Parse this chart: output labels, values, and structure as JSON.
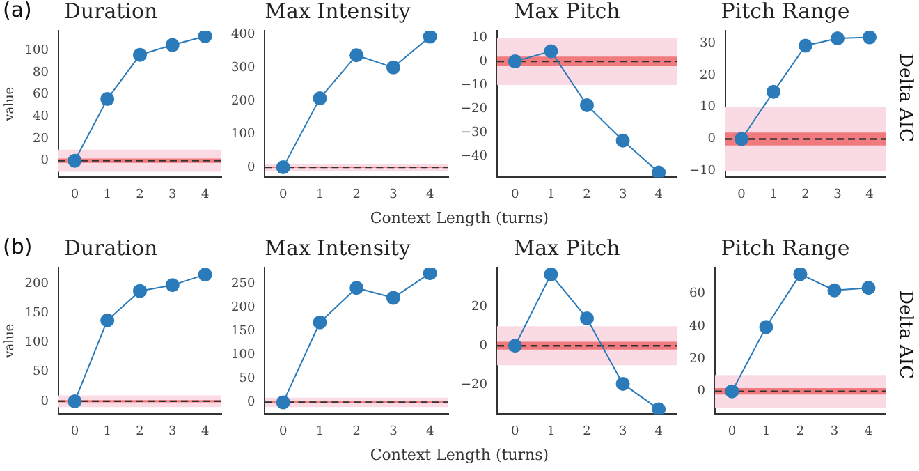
{
  "chart_data": [
    {
      "type": "line",
      "title": "Duration",
      "ylabel": "value",
      "annotations": [
        "(a)"
      ],
      "x": [
        0,
        1,
        2,
        3,
        4
      ],
      "xlim": [
        -0.5,
        4.5
      ],
      "xticks": [
        0,
        1,
        2,
        3,
        4
      ],
      "ylim": [
        -15,
        118
      ],
      "yticks": [
        0,
        20,
        40,
        60,
        80,
        100
      ],
      "color": "#2b7bba",
      "values": [
        0,
        56,
        96,
        105,
        113
      ],
      "marker": "circle",
      "grid": false,
      "legend": false,
      "bands": [
        {
          "axis": "y",
          "from": -10,
          "to": 10,
          "color": "#fbdbe3"
        },
        {
          "axis": "y",
          "from": -2,
          "to": 2,
          "color": "#f07a7e"
        }
      ],
      "ref_lines": [
        {
          "axis": "y",
          "value": 0,
          "color": "#333333",
          "line_style": "dashed"
        }
      ]
    },
    {
      "type": "line",
      "title": "Max Intensity",
      "xlabel": "Context Length (turns)",
      "x": [
        0,
        1,
        2,
        3,
        4
      ],
      "xlim": [
        -0.5,
        4.5
      ],
      "xticks": [
        0,
        1,
        2,
        3,
        4
      ],
      "ylim": [
        -30,
        412
      ],
      "yticks": [
        0,
        100,
        200,
        300,
        400
      ],
      "color": "#2b7bba",
      "values": [
        0,
        208,
        338,
        301,
        394
      ],
      "marker": "circle",
      "grid": false,
      "legend": false,
      "bands": [
        {
          "axis": "y",
          "from": -10,
          "to": 10,
          "color": "#fbdbe3"
        },
        {
          "axis": "y",
          "from": -2,
          "to": 2,
          "color": "#f07a7e"
        }
      ],
      "ref_lines": [
        {
          "axis": "y",
          "value": 0,
          "color": "#333333",
          "line_style": "dashed"
        }
      ]
    },
    {
      "type": "line",
      "title": "Max Pitch",
      "x": [
        0,
        1,
        2,
        3,
        4
      ],
      "xlim": [
        -0.5,
        4.5
      ],
      "xticks": [
        0,
        1,
        2,
        3,
        4
      ],
      "ylim": [
        -49,
        13
      ],
      "yticks": [
        {
          "value": -40,
          "label": "−40"
        },
        {
          "value": -30,
          "label": "−30"
        },
        {
          "value": -20,
          "label": "−20"
        },
        {
          "value": -10,
          "label": "−10"
        },
        0,
        10
      ],
      "color": "#2b7bba",
      "values": [
        0,
        4.3,
        -18.5,
        -33.5,
        -47
      ],
      "marker": "circle",
      "grid": false,
      "legend": false,
      "bands": [
        {
          "axis": "y",
          "from": -10,
          "to": 10,
          "color": "#fbdbe3"
        },
        {
          "axis": "y",
          "from": -2,
          "to": 2,
          "color": "#f07a7e"
        }
      ],
      "ref_lines": [
        {
          "axis": "y",
          "value": 0,
          "color": "#333333",
          "line_style": "dashed"
        }
      ]
    },
    {
      "type": "line",
      "title": "Pitch Range",
      "annotations": [
        "Delta AIC"
      ],
      "x": [
        0,
        1,
        2,
        3,
        4
      ],
      "xlim": [
        -0.5,
        4.5
      ],
      "xticks": [
        0,
        1,
        2,
        3,
        4
      ],
      "ylim": [
        -12,
        34
      ],
      "yticks": [
        {
          "value": -10,
          "label": "−10"
        },
        0,
        10,
        20,
        30
      ],
      "color": "#2b7bba",
      "values": [
        0,
        14.8,
        29.3,
        31.6,
        31.9
      ],
      "marker": "circle",
      "grid": false,
      "legend": false,
      "bands": [
        {
          "axis": "y",
          "from": -10,
          "to": 10,
          "color": "#fbdbe3"
        },
        {
          "axis": "y",
          "from": -2,
          "to": 2,
          "color": "#f07a7e"
        }
      ],
      "ref_lines": [
        {
          "axis": "y",
          "value": 0,
          "color": "#333333",
          "line_style": "dashed"
        }
      ]
    },
    {
      "type": "line",
      "title": "Duration",
      "ylabel": "value",
      "annotations": [
        "(b)"
      ],
      "x": [
        0,
        1,
        2,
        3,
        4
      ],
      "xlim": [
        -0.5,
        4.5
      ],
      "xticks": [
        0,
        1,
        2,
        3,
        4
      ],
      "ylim": [
        -22,
        228
      ],
      "yticks": [
        0,
        50,
        100,
        150,
        200
      ],
      "color": "#2b7bba",
      "values": [
        0,
        138,
        188,
        198,
        216
      ],
      "marker": "circle",
      "grid": false,
      "legend": false,
      "bands": [
        {
          "axis": "y",
          "from": -10,
          "to": 10,
          "color": "#fbdbe3"
        },
        {
          "axis": "y",
          "from": -2,
          "to": 2,
          "color": "#f07a7e"
        }
      ],
      "ref_lines": [
        {
          "axis": "y",
          "value": 0,
          "color": "#333333",
          "line_style": "dashed"
        }
      ]
    },
    {
      "type": "line",
      "title": "Max Intensity",
      "xlabel": "Context Length (turns)",
      "x": [
        0,
        1,
        2,
        3,
        4
      ],
      "xlim": [
        -0.5,
        4.5
      ],
      "xticks": [
        0,
        1,
        2,
        3,
        4
      ],
      "ylim": [
        -25,
        285
      ],
      "yticks": [
        0,
        50,
        100,
        150,
        200,
        250
      ],
      "color": "#2b7bba",
      "values": [
        0,
        169,
        242,
        221,
        273
      ],
      "marker": "circle",
      "grid": false,
      "legend": false,
      "bands": [
        {
          "axis": "y",
          "from": -10,
          "to": 10,
          "color": "#fbdbe3"
        },
        {
          "axis": "y",
          "from": -2,
          "to": 2,
          "color": "#f07a7e"
        }
      ],
      "ref_lines": [
        {
          "axis": "y",
          "value": 0,
          "color": "#333333",
          "line_style": "dashed"
        }
      ]
    },
    {
      "type": "line",
      "title": "Max Pitch",
      "x": [
        0,
        1,
        2,
        3,
        4
      ],
      "xlim": [
        -0.5,
        4.5
      ],
      "xticks": [
        0,
        1,
        2,
        3,
        4
      ],
      "ylim": [
        -35,
        40
      ],
      "yticks": [
        {
          "value": -20,
          "label": "−20"
        },
        0,
        20
      ],
      "color": "#2b7bba",
      "values": [
        0,
        36.5,
        14,
        -19.5,
        -32.5
      ],
      "marker": "circle",
      "grid": false,
      "legend": false,
      "bands": [
        {
          "axis": "y",
          "from": -10,
          "to": 10,
          "color": "#fbdbe3"
        },
        {
          "axis": "y",
          "from": -2,
          "to": 2,
          "color": "#f07a7e"
        }
      ],
      "ref_lines": [
        {
          "axis": "y",
          "value": 0,
          "color": "#333333",
          "line_style": "dashed"
        }
      ]
    },
    {
      "type": "line",
      "title": "Pitch Range",
      "annotations": [
        "Delta AIC"
      ],
      "x": [
        0,
        1,
        2,
        3,
        4
      ],
      "xlim": [
        -0.5,
        4.5
      ],
      "xticks": [
        0,
        1,
        2,
        3,
        4
      ],
      "ylim": [
        -14,
        76
      ],
      "yticks": [
        0,
        20,
        40,
        60
      ],
      "color": "#2b7bba",
      "values": [
        0,
        39.5,
        72,
        62,
        63.5
      ],
      "marker": "circle",
      "grid": false,
      "legend": false,
      "bands": [
        {
          "axis": "y",
          "from": -10,
          "to": 10,
          "color": "#fbdbe3"
        },
        {
          "axis": "y",
          "from": -2,
          "to": 2,
          "color": "#f07a7e"
        }
      ],
      "ref_lines": [
        {
          "axis": "y",
          "value": 0,
          "color": "#333333",
          "line_style": "dashed"
        }
      ]
    }
  ]
}
